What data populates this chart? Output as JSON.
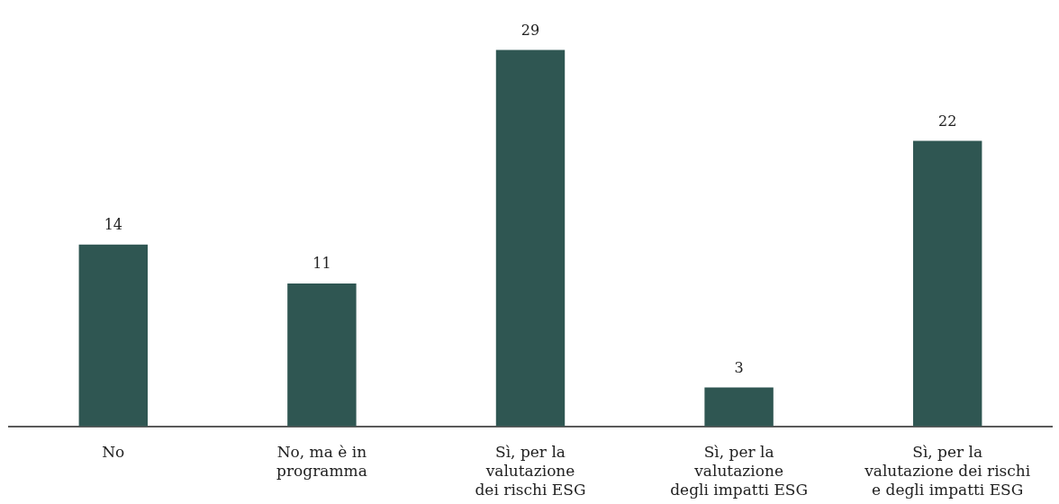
{
  "chart_data": {
    "type": "bar",
    "categories": [
      "No",
      "No, ma è in\nprogramma",
      "Sì, per la\nvalutazione\ndei rischi ESG",
      "Sì, per la\nvalutazione\ndegli impatti ESG",
      "Sì, per la\nvalutazione dei rischi\ne degli impatti ESG"
    ],
    "values": [
      14,
      11,
      29,
      3,
      22
    ],
    "color": "#2f5652",
    "data_labels": true
  }
}
